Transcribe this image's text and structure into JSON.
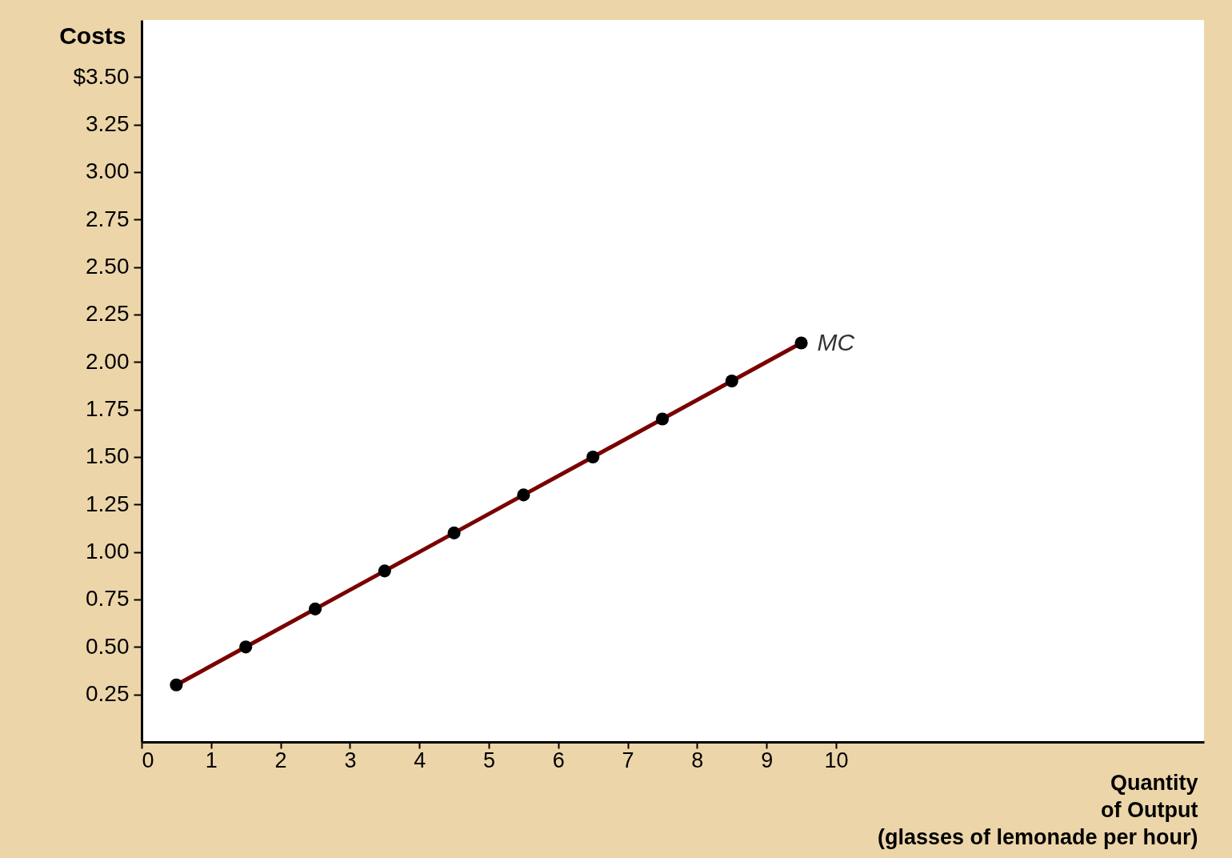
{
  "chart_data": {
    "type": "line",
    "xlabel": "Quantity\nof Output\n(glasses of lemonade per hour)",
    "ylabel": "Costs",
    "x": [
      0.5,
      1.5,
      2.5,
      3.5,
      4.5,
      5.5,
      6.5,
      7.5,
      8.5,
      9.5
    ],
    "series": [
      {
        "name": "MC",
        "color": "#7a0000",
        "values": [
          0.3,
          0.5,
          0.7,
          0.9,
          1.1,
          1.3,
          1.5,
          1.7,
          1.9,
          2.1
        ]
      }
    ],
    "xlim": [
      0,
      15.3
    ],
    "ylim": [
      0,
      3.8
    ],
    "xticks": [
      0,
      1,
      2,
      3,
      4,
      5,
      6,
      7,
      8,
      9,
      10
    ],
    "yticks": [
      {
        "value": 0.25,
        "label": "0.25"
      },
      {
        "value": 0.5,
        "label": "0.50"
      },
      {
        "value": 0.75,
        "label": "0.75"
      },
      {
        "value": 1.0,
        "label": "1.00"
      },
      {
        "value": 1.25,
        "label": "1.25"
      },
      {
        "value": 1.5,
        "label": "1.50"
      },
      {
        "value": 1.75,
        "label": "1.75"
      },
      {
        "value": 2.0,
        "label": "2.00"
      },
      {
        "value": 2.25,
        "label": "2.25"
      },
      {
        "value": 2.5,
        "label": "2.50"
      },
      {
        "value": 2.75,
        "label": "2.75"
      },
      {
        "value": 3.0,
        "label": "3.00"
      },
      {
        "value": 3.25,
        "label": "3.25"
      },
      {
        "value": 3.5,
        "label": "$3.50"
      }
    ],
    "marker": "circle",
    "line_style": "solid",
    "grid": false
  }
}
